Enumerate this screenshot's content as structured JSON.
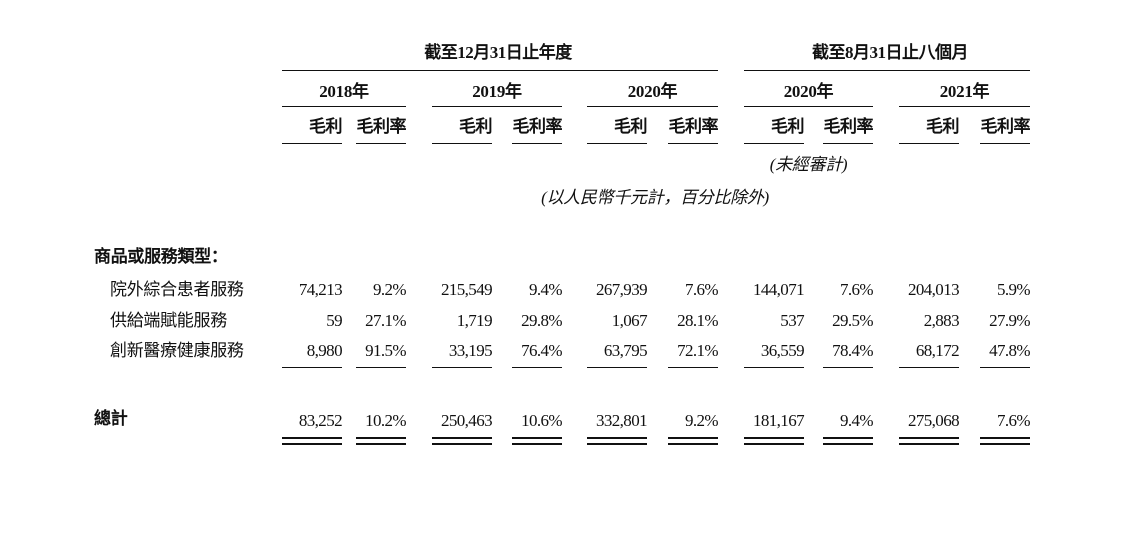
{
  "header": {
    "group1_title": "截至12月31日止年度",
    "group2_title": "截至8月31日止八個月",
    "years": [
      "2018年",
      "2019年",
      "2020年",
      "2020年",
      "2021年"
    ],
    "gross_profit_label": "毛利",
    "gross_margin_label": "毛利率",
    "unaudited_note": "(未經審計)",
    "unit_note": "(以人民幣千元計，百分比除外)"
  },
  "section_title": "商品或服務類型：",
  "rows": [
    {
      "label": "院外綜合患者服務",
      "values": [
        "74,213",
        "9.2%",
        "215,549",
        "9.4%",
        "267,939",
        "7.6%",
        "144,071",
        "7.6%",
        "204,013",
        "5.9%"
      ]
    },
    {
      "label": "供給端賦能服務",
      "values": [
        "59",
        "27.1%",
        "1,719",
        "29.8%",
        "1,067",
        "28.1%",
        "537",
        "29.5%",
        "2,883",
        "27.9%"
      ]
    },
    {
      "label": "創新醫療健康服務",
      "values": [
        "8,980",
        "91.5%",
        "33,195",
        "76.4%",
        "63,795",
        "72.1%",
        "36,559",
        "78.4%",
        "68,172",
        "47.8%"
      ]
    }
  ],
  "total": {
    "label": "總計",
    "values": [
      "83,252",
      "10.2%",
      "250,463",
      "10.6%",
      "332,801",
      "9.2%",
      "181,167",
      "9.4%",
      "275,068",
      "7.6%"
    ]
  }
}
